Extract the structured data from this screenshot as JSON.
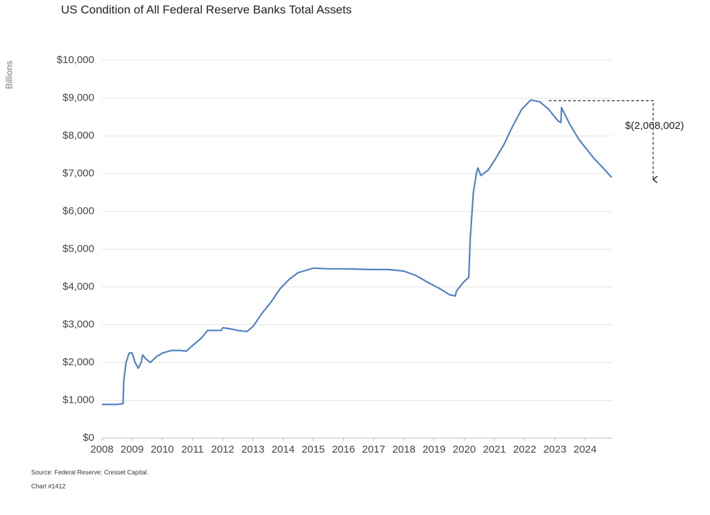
{
  "chart_data": {
    "type": "line",
    "title": "US Condition of All Federal Reserve Banks Total Assets",
    "y_label": "Billions",
    "source": "Source: Federal Reserve; Cresset Capital.",
    "chart_number": "Chart #1412",
    "annotation": "$(2,068,002)",
    "x": [
      2008.0,
      2008.5,
      2008.7,
      2008.72,
      2008.8,
      2008.9,
      2009.0,
      2009.1,
      2009.2,
      2009.3,
      2009.35,
      2009.45,
      2009.6,
      2009.8,
      2010.0,
      2010.3,
      2010.6,
      2010.8,
      2011.0,
      2011.3,
      2011.5,
      2011.8,
      2011.95,
      2012.0,
      2012.2,
      2012.5,
      2012.8,
      2013.0,
      2013.3,
      2013.6,
      2013.9,
      2014.2,
      2014.5,
      2014.8,
      2015.0,
      2015.5,
      2016.0,
      2016.5,
      2017.0,
      2017.5,
      2018.0,
      2018.4,
      2018.8,
      2019.2,
      2019.5,
      2019.7,
      2019.75,
      2020.0,
      2020.15,
      2020.2,
      2020.3,
      2020.4,
      2020.45,
      2020.55,
      2020.8,
      2021.0,
      2021.3,
      2021.6,
      2021.9,
      2022.2,
      2022.5,
      2022.8,
      2023.1,
      2023.2,
      2023.22,
      2023.5,
      2023.8,
      2024.0,
      2024.3,
      2024.6,
      2024.88
    ],
    "series": [
      {
        "name": "Total Assets",
        "color": "#4f81c3",
        "values": [
          890,
          890,
          910,
          1500,
          2000,
          2250,
          2250,
          2000,
          1850,
          2000,
          2200,
          2100,
          2000,
          2150,
          2250,
          2320,
          2320,
          2300,
          2450,
          2650,
          2850,
          2850,
          2850,
          2920,
          2900,
          2850,
          2820,
          2950,
          3300,
          3600,
          3950,
          4200,
          4380,
          4450,
          4500,
          4480,
          4480,
          4470,
          4460,
          4460,
          4420,
          4300,
          4120,
          3950,
          3800,
          3760,
          3900,
          4150,
          4250,
          5300,
          6500,
          7000,
          7150,
          6950,
          7100,
          7350,
          7750,
          8250,
          8700,
          8950,
          8900,
          8700,
          8400,
          8350,
          8750,
          8300,
          7900,
          7700,
          7400,
          7150,
          6900
        ]
      }
    ],
    "xlim": [
      2008,
      2024.9
    ],
    "xticks": [
      2008,
      2009,
      2010,
      2011,
      2012,
      2013,
      2014,
      2015,
      2016,
      2017,
      2018,
      2019,
      2020,
      2021,
      2022,
      2023,
      2024
    ],
    "ylim": [
      0,
      10000
    ],
    "yticks": [
      {
        "value": 0,
        "label": "$0"
      },
      {
        "value": 1000,
        "label": "$1,000"
      },
      {
        "value": 2000,
        "label": "$2,000"
      },
      {
        "value": 3000,
        "label": "$3,000"
      },
      {
        "value": 4000,
        "label": "$4,000"
      },
      {
        "value": 5000,
        "label": "$5,000"
      },
      {
        "value": 6000,
        "label": "$6,000"
      },
      {
        "value": 7000,
        "label": "$7,000"
      },
      {
        "value": 8000,
        "label": "$8,000"
      },
      {
        "value": 9000,
        "label": "$9,000"
      },
      {
        "value": 10000,
        "label": "$10,000"
      }
    ],
    "grid": true
  }
}
